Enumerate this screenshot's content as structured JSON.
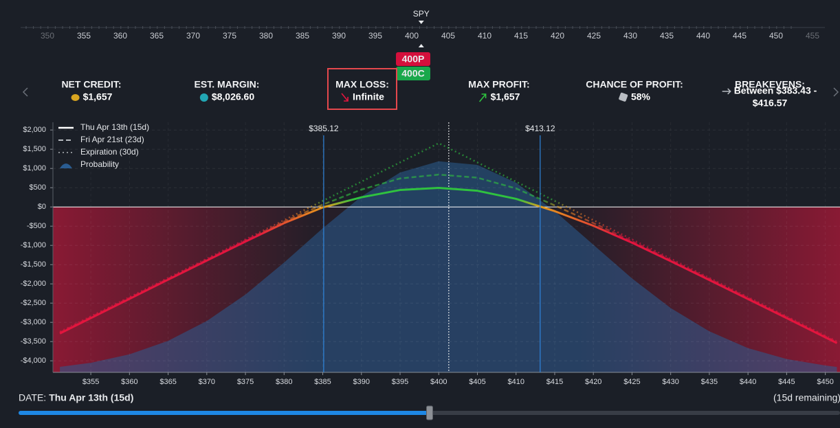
{
  "strike_ladder": {
    "ticker": "SPY",
    "strikes": [
      350,
      355,
      360,
      365,
      370,
      375,
      380,
      385,
      390,
      395,
      400,
      405,
      410,
      415,
      420,
      425,
      430,
      435,
      440,
      445,
      450,
      455
    ],
    "legs": [
      {
        "label": "400P",
        "strike": 400,
        "color": "#d4103c"
      },
      {
        "label": "400C",
        "strike": 400,
        "color": "#19a84b"
      }
    ]
  },
  "stats": [
    {
      "label": "NET CREDIT:",
      "value": "$1,657"
    },
    {
      "label": "EST. MARGIN:",
      "value": "$8,026.60"
    },
    {
      "label": "MAX LOSS:",
      "value": "Infinite"
    },
    {
      "label": "MAX PROFIT:",
      "value": "$1,657"
    },
    {
      "label": "CHANCE OF PROFIT:",
      "value": "58%"
    },
    {
      "label": "BREAKEVENS:",
      "value": [
        "Between $383.43 -",
        "$416.57"
      ]
    }
  ],
  "chart_data": {
    "type": "line",
    "xlim": [
      350.1,
      451.9
    ],
    "ylim": [
      -4300,
      2200
    ],
    "xticks": [
      {
        "value": 355,
        "label": "$355"
      },
      {
        "value": 360,
        "label": "$360"
      },
      {
        "value": 365,
        "label": "$365"
      },
      {
        "value": 370,
        "label": "$370"
      },
      {
        "value": 375,
        "label": "$375"
      },
      {
        "value": 380,
        "label": "$380"
      },
      {
        "value": 385,
        "label": "$385"
      },
      {
        "value": 390,
        "label": "$390"
      },
      {
        "value": 395,
        "label": "$395"
      },
      {
        "value": 400,
        "label": "$400"
      },
      {
        "value": 405,
        "label": "$405"
      },
      {
        "value": 410,
        "label": "$410"
      },
      {
        "value": 415,
        "label": "$415"
      },
      {
        "value": 420,
        "label": "$420"
      },
      {
        "value": 425,
        "label": "$425"
      },
      {
        "value": 430,
        "label": "$430"
      },
      {
        "value": 435,
        "label": "$435"
      },
      {
        "value": 440,
        "label": "$440"
      },
      {
        "value": 445,
        "label": "$445"
      },
      {
        "value": 450,
        "label": "$450"
      }
    ],
    "yticks": [
      {
        "value": 2000,
        "label": "$2,000"
      },
      {
        "value": 1500,
        "label": "$1,500"
      },
      {
        "value": 1000,
        "label": "$1,000"
      },
      {
        "value": 500,
        "label": "$500"
      },
      {
        "value": 0,
        "label": "$0"
      },
      {
        "value": -500,
        "label": "-$500"
      },
      {
        "value": -1000,
        "label": "-$1,000"
      },
      {
        "value": -1500,
        "label": "-$1,500"
      },
      {
        "value": -2000,
        "label": "-$2,000"
      },
      {
        "value": -2500,
        "label": "-$2,500"
      },
      {
        "value": -3000,
        "label": "-$3,000"
      },
      {
        "value": -3500,
        "label": "-$3,500"
      },
      {
        "value": -4000,
        "label": "-$4,000"
      }
    ],
    "grid": true,
    "legend_corner": "top-left",
    "profit_color": "#2fc23f",
    "zero_color": "#e59a1c",
    "loss_color": "#e3153e",
    "current_price": 401.3,
    "breakevens": [
      {
        "value": 385.12,
        "label": "$385.12"
      },
      {
        "value": 413.12,
        "label": "$413.12"
      }
    ],
    "breakeven_color": "#2f86dd",
    "x": [
      351,
      355,
      360,
      365,
      370,
      375,
      380,
      385,
      390,
      395,
      400,
      405,
      410,
      415,
      420,
      425,
      430,
      435,
      440,
      445,
      450,
      451.5
    ],
    "probability": {
      "name": "Probability",
      "color": "#2a5c91",
      "values": [
        -4158,
        -4052,
        -3832,
        -3481,
        -2965,
        -2277,
        -1446,
        -554,
        271,
        894,
        1187,
        1092,
        630,
        -108,
        -982,
        -1858,
        -2628,
        -3234,
        -3670,
        -3953,
        -4122,
        -4160
      ]
    },
    "series": [
      {
        "name": "Thu Apr 13th (15d)",
        "color": "#ffffff",
        "dash": "solid",
        "values": [
          -3290,
          -2890,
          -2390,
          -1890,
          -1395,
          -900,
          -420,
          -12,
          250,
          440,
          495,
          420,
          210,
          -110,
          -490,
          -930,
          -1410,
          -1900,
          -2395,
          -2890,
          -3390,
          -3540
        ]
      },
      {
        "name": "Fri Apr 21st (23d)",
        "color": "#b8bcc2",
        "dash": "dashed",
        "values": [
          -3265,
          -2865,
          -2365,
          -1865,
          -1368,
          -870,
          -380,
          60,
          450,
          740,
          840,
          760,
          480,
          40,
          -420,
          -890,
          -1380,
          -1870,
          -2365,
          -2865,
          -3365,
          -3515
        ]
      },
      {
        "name": "Expiration (30d)",
        "color": "#8d9196",
        "dash": "dotted",
        "values": [
          -3243,
          -2843,
          -2343,
          -1843,
          -1343,
          -843,
          -343,
          157,
          657,
          1157,
          1657,
          1157,
          657,
          157,
          -343,
          -843,
          -1343,
          -1843,
          -2343,
          -2843,
          -3343,
          -3493
        ]
      }
    ]
  },
  "footer": {
    "date_label": "DATE:",
    "date": "Thu Apr 13th (15d)",
    "remaining": "(15d remaining)",
    "slider_value": 15,
    "slider_max": 30
  }
}
